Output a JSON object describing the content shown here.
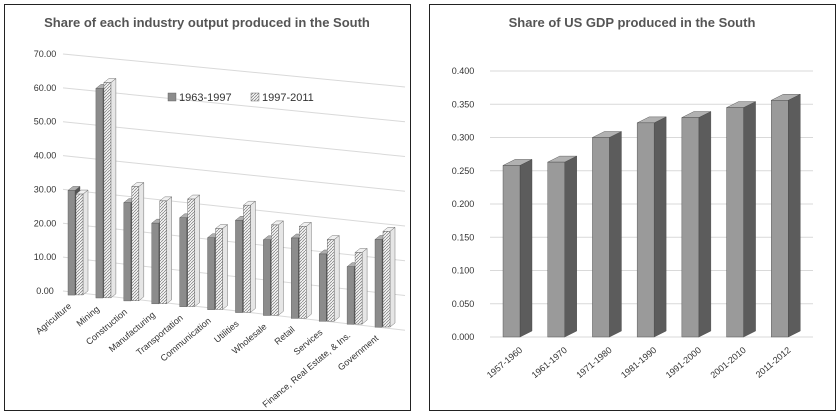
{
  "chart_data": [
    {
      "type": "bar",
      "title": "Share of each industry output produced in the South",
      "categories": [
        "Agriculture",
        "Mining",
        "Construction",
        "Manufacturing",
        "Transportation",
        "Communication",
        "Utilities",
        "Wholesale",
        "Retail",
        "Services",
        "Finance, Real Estate, & Ins.",
        "Government"
      ],
      "series": [
        {
          "name": "1963-1997",
          "values": [
            31,
            63,
            30,
            25,
            28,
            23,
            30,
            25,
            27,
            23,
            20,
            31
          ],
          "color": "#8c8c8c"
        },
        {
          "name": "1997-2011",
          "values": [
            30,
            65,
            35,
            32,
            34,
            26,
            35,
            30,
            31,
            28,
            25,
            34
          ],
          "color": "#d0d0d0"
        }
      ],
      "yticks": [
        "0.00",
        "10.00",
        "20.00",
        "30.00",
        "40.00",
        "50.00",
        "60.00",
        "70.00"
      ],
      "ylim": [
        0,
        70
      ],
      "grid": true,
      "legend": "center-right"
    },
    {
      "type": "bar",
      "title": "Share of US GDP produced in the South",
      "categories": [
        "1957-1960",
        "1961-1970",
        "1971-1980",
        "1981-1990",
        "1991-2000",
        "2001-2010",
        "2011-2012"
      ],
      "series": [
        {
          "name": "",
          "values": [
            0.258,
            0.263,
            0.3,
            0.322,
            0.33,
            0.345,
            0.356
          ],
          "color": "#9a9a9a"
        }
      ],
      "yticks": [
        "0.000",
        "0.050",
        "0.100",
        "0.150",
        "0.200",
        "0.250",
        "0.300",
        "0.350",
        "0.400"
      ],
      "ylim": [
        0,
        0.4
      ],
      "grid": true
    }
  ]
}
